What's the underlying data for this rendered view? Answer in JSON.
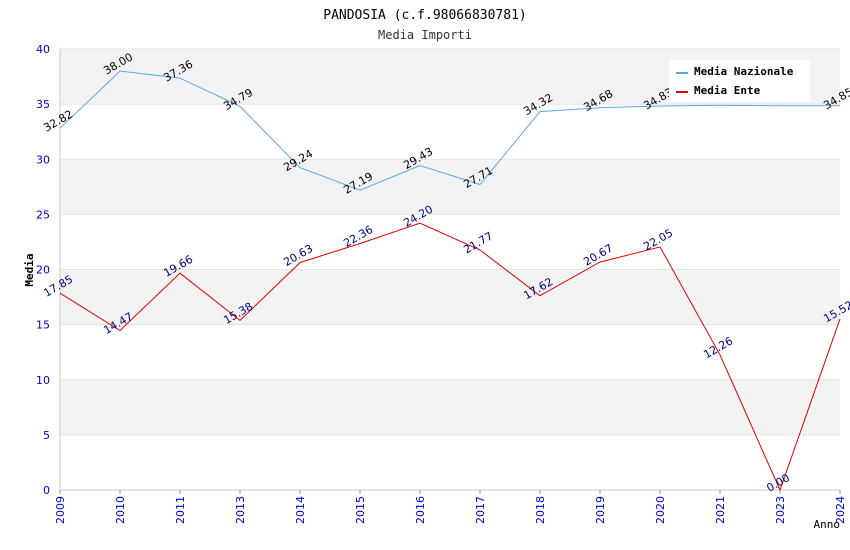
{
  "chart_data": {
    "type": "line",
    "title": "PANDOSIA (c.f.98066830781)",
    "subtitle": "Media Importi",
    "xlabel": "Anno",
    "ylabel": "Media",
    "ylim": [
      0,
      40
    ],
    "yticks": [
      0,
      5,
      10,
      15,
      20,
      25,
      30,
      35,
      40
    ],
    "categories": [
      "2009",
      "2010",
      "2011",
      "2013",
      "2014",
      "2015",
      "2016",
      "2017",
      "2018",
      "2019",
      "2020",
      "2021",
      "2023",
      "2024"
    ],
    "legend_position": "top-right",
    "series": [
      {
        "name": "Media Nazionale",
        "color": "#5aa7e8",
        "label_color": "#000000",
        "values": [
          32.82,
          38.0,
          37.36,
          34.79,
          29.24,
          27.19,
          29.43,
          27.71,
          34.32,
          34.68,
          34.83,
          34.89,
          34.85,
          34.85
        ],
        "labels": [
          "32.82",
          "38.00",
          "37.36",
          "34.79",
          "29.24",
          "27.19",
          "29.43",
          "27.71",
          "34.32",
          "34.68",
          "34.83",
          "",
          "",
          "34.85"
        ]
      },
      {
        "name": "Media Ente",
        "color": "#e00000",
        "label_color": "#000080",
        "values": [
          17.85,
          14.47,
          19.66,
          15.38,
          20.63,
          22.36,
          24.2,
          21.77,
          17.62,
          20.67,
          22.05,
          12.26,
          0.0,
          15.52
        ],
        "labels": [
          "17.85",
          "14.47",
          "19.66",
          "15.38",
          "20.63",
          "22.36",
          "24.20",
          "21.77",
          "17.62",
          "20.67",
          "22.05",
          "12.26",
          "0.00",
          "15.52"
        ]
      }
    ]
  }
}
